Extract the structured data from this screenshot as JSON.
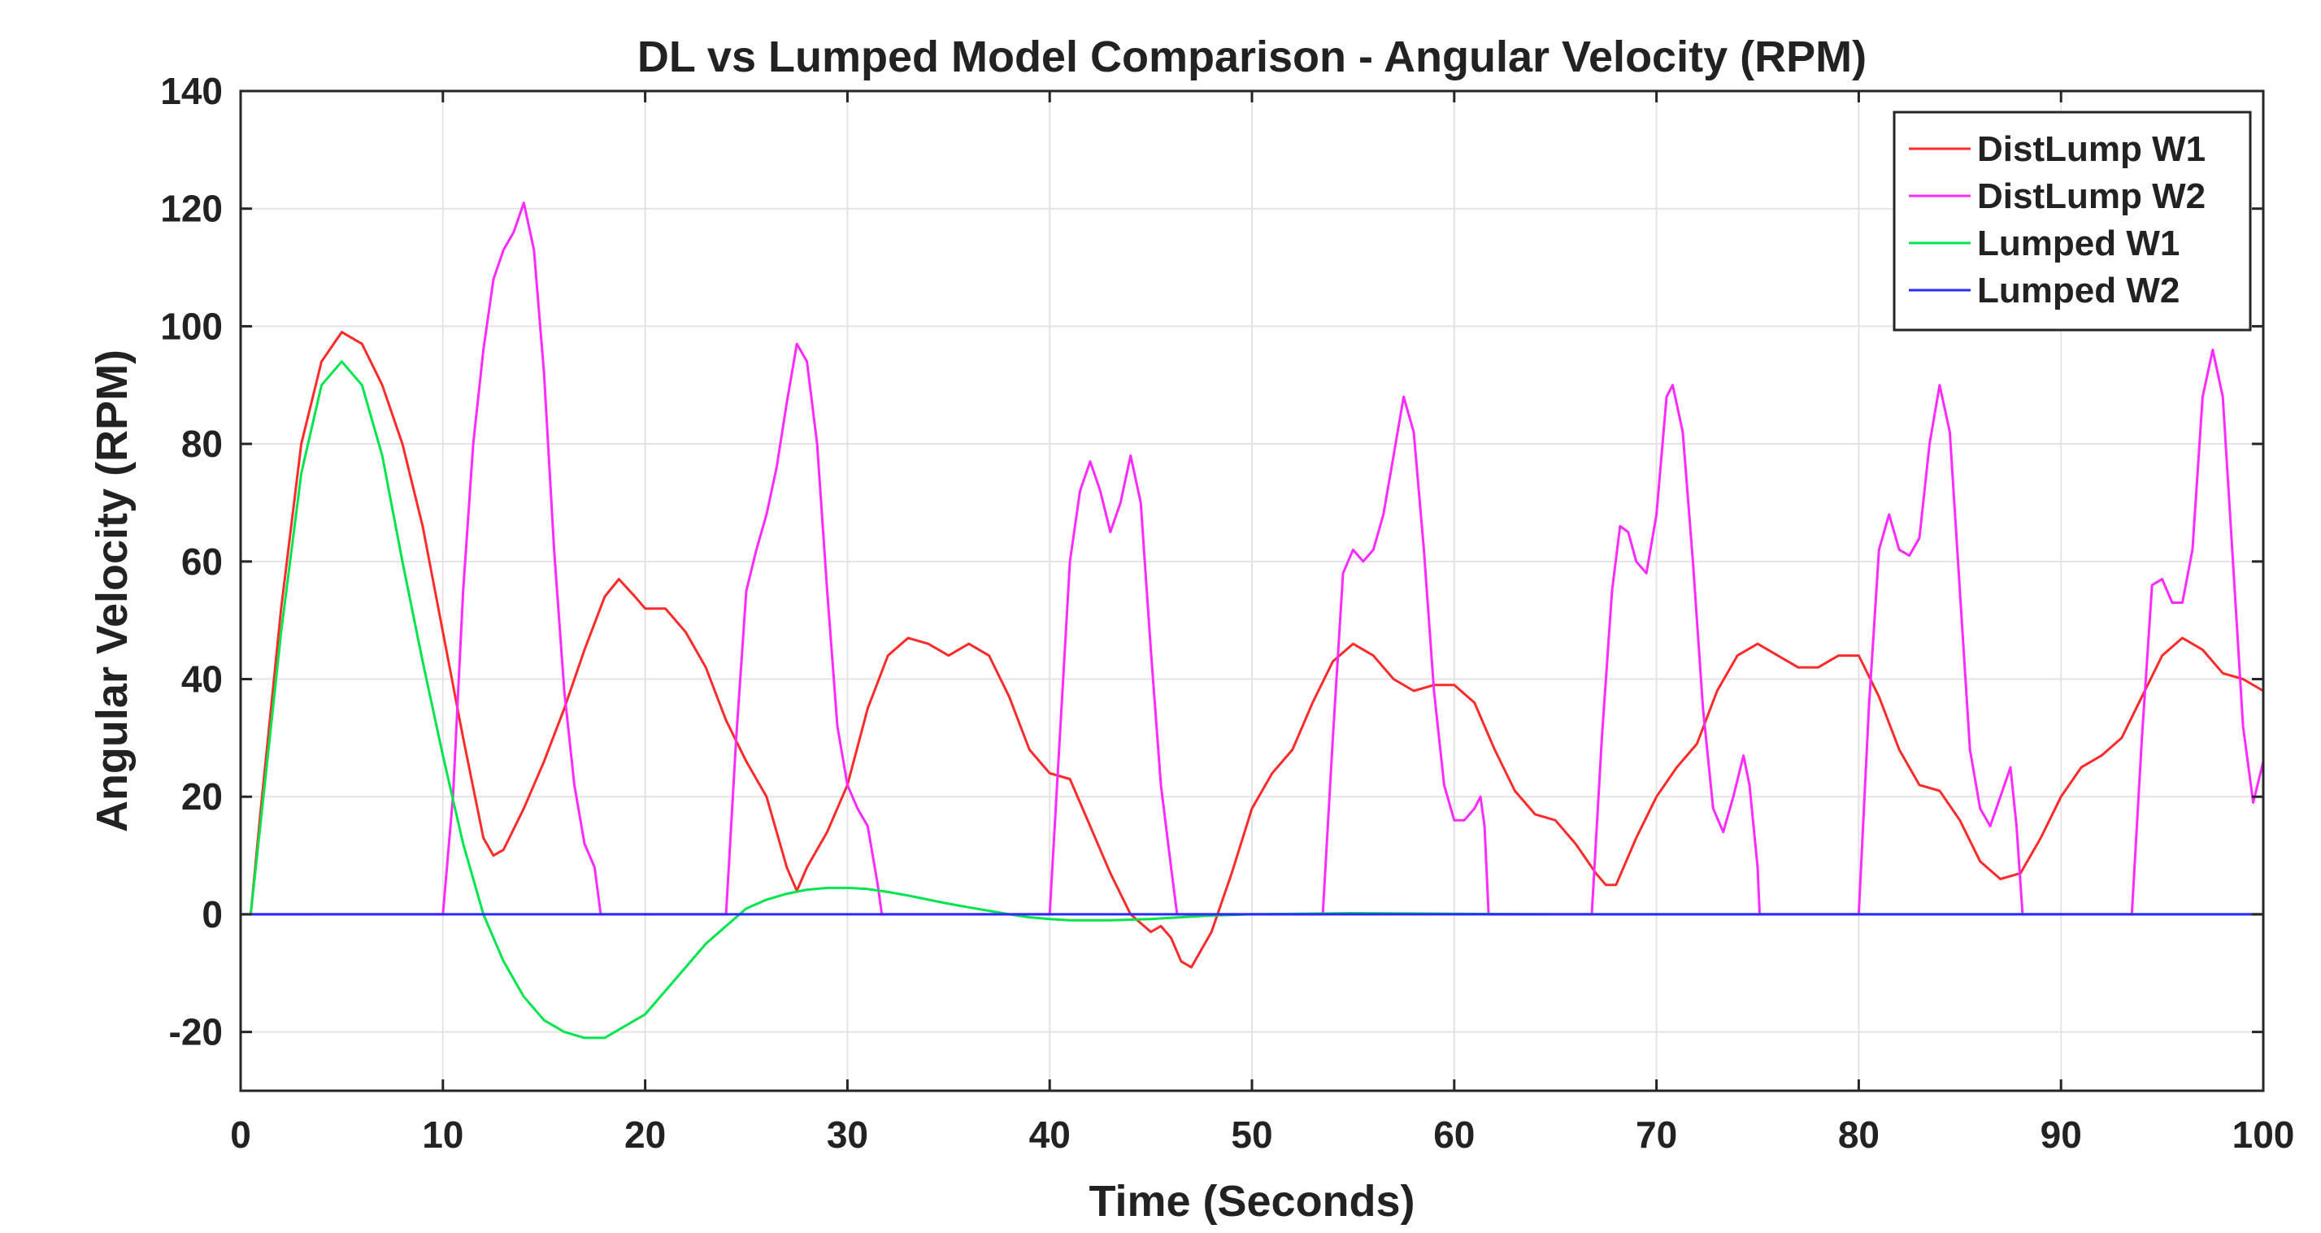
{
  "chart_data": {
    "type": "line",
    "title": "DL vs Lumped Model Comparison - Angular Velocity (RPM)",
    "xlabel": "Time (Seconds)",
    "ylabel": "Angular Velocity (RPM)",
    "xlim": [
      0,
      100
    ],
    "ylim": [
      -30,
      140
    ],
    "xticks": [
      0,
      10,
      20,
      30,
      40,
      50,
      60,
      70,
      80,
      90,
      100
    ],
    "yticks": [
      -20,
      0,
      20,
      40,
      60,
      80,
      100,
      120,
      140
    ],
    "xtick_labels": [
      "0",
      "10",
      "20",
      "30",
      "40",
      "50",
      "60",
      "70",
      "80",
      "90",
      "100"
    ],
    "ytick_labels": [
      "-20",
      "0",
      "20",
      "40",
      "60",
      "80",
      "100",
      "120",
      "140"
    ],
    "grid": true,
    "legend_position": "top-right",
    "series": [
      {
        "name": "DistLump W1",
        "color": "#ff2a2a",
        "points": [
          [
            0.5,
            0
          ],
          [
            1,
            18
          ],
          [
            2,
            52
          ],
          [
            3,
            80
          ],
          [
            4,
            94
          ],
          [
            5,
            99
          ],
          [
            6,
            97
          ],
          [
            7,
            90
          ],
          [
            8,
            80
          ],
          [
            9,
            66
          ],
          [
            10,
            48
          ],
          [
            11,
            30
          ],
          [
            12,
            13
          ],
          [
            12.5,
            10
          ],
          [
            13,
            11
          ],
          [
            14,
            18
          ],
          [
            15,
            26
          ],
          [
            16,
            35
          ],
          [
            17,
            45
          ],
          [
            18,
            54
          ],
          [
            18.7,
            57
          ],
          [
            19.5,
            54
          ],
          [
            20,
            52
          ],
          [
            21,
            52
          ],
          [
            22,
            48
          ],
          [
            23,
            42
          ],
          [
            24,
            33
          ],
          [
            25,
            26
          ],
          [
            26,
            20
          ],
          [
            27,
            8
          ],
          [
            27.5,
            4
          ],
          [
            28,
            8
          ],
          [
            29,
            14
          ],
          [
            30,
            22
          ],
          [
            31,
            35
          ],
          [
            32,
            44
          ],
          [
            33,
            47
          ],
          [
            34,
            46
          ],
          [
            35,
            44
          ],
          [
            36,
            46
          ],
          [
            37,
            44
          ],
          [
            38,
            37
          ],
          [
            39,
            28
          ],
          [
            40,
            24
          ],
          [
            41,
            23
          ],
          [
            42,
            15
          ],
          [
            43,
            7
          ],
          [
            44,
            0
          ],
          [
            45,
            -3
          ],
          [
            45.5,
            -2
          ],
          [
            46,
            -4
          ],
          [
            46.5,
            -8
          ],
          [
            47,
            -9
          ],
          [
            48,
            -3
          ],
          [
            49,
            7
          ],
          [
            50,
            18
          ],
          [
            51,
            24
          ],
          [
            52,
            28
          ],
          [
            53,
            36
          ],
          [
            54,
            43
          ],
          [
            55,
            46
          ],
          [
            56,
            44
          ],
          [
            57,
            40
          ],
          [
            58,
            38
          ],
          [
            59,
            39
          ],
          [
            60,
            39
          ],
          [
            61,
            36
          ],
          [
            62,
            28
          ],
          [
            63,
            21
          ],
          [
            64,
            17
          ],
          [
            65,
            16
          ],
          [
            66,
            12
          ],
          [
            67,
            7
          ],
          [
            67.5,
            5
          ],
          [
            68,
            5
          ],
          [
            69,
            13
          ],
          [
            70,
            20
          ],
          [
            71,
            25
          ],
          [
            72,
            29
          ],
          [
            73,
            38
          ],
          [
            74,
            44
          ],
          [
            75,
            46
          ],
          [
            76,
            44
          ],
          [
            77,
            42
          ],
          [
            78,
            42
          ],
          [
            79,
            44
          ],
          [
            80,
            44
          ],
          [
            81,
            37
          ],
          [
            82,
            28
          ],
          [
            83,
            22
          ],
          [
            84,
            21
          ],
          [
            85,
            16
          ],
          [
            86,
            9
          ],
          [
            87,
            6
          ],
          [
            88,
            7
          ],
          [
            89,
            13
          ],
          [
            90,
            20
          ],
          [
            91,
            25
          ],
          [
            92,
            27
          ],
          [
            93,
            30
          ],
          [
            94,
            37
          ],
          [
            95,
            44
          ],
          [
            96,
            47
          ],
          [
            97,
            45
          ],
          [
            98,
            41
          ],
          [
            99,
            40
          ],
          [
            100,
            38
          ]
        ]
      },
      {
        "name": "DistLump W2",
        "color": "#ff2aff",
        "points": [
          [
            0,
            0
          ],
          [
            10,
            0
          ],
          [
            10.5,
            20
          ],
          [
            11,
            55
          ],
          [
            11.5,
            80
          ],
          [
            12,
            96
          ],
          [
            12.5,
            108
          ],
          [
            13,
            113
          ],
          [
            13.5,
            116
          ],
          [
            14,
            121
          ],
          [
            14.5,
            113
          ],
          [
            15,
            92
          ],
          [
            15.5,
            62
          ],
          [
            16,
            38
          ],
          [
            16.5,
            22
          ],
          [
            17,
            12
          ],
          [
            17.5,
            8
          ],
          [
            17.8,
            0
          ],
          [
            24,
            0
          ],
          [
            24.5,
            30
          ],
          [
            25,
            55
          ],
          [
            25.5,
            62
          ],
          [
            26,
            68
          ],
          [
            26.5,
            76
          ],
          [
            27,
            87
          ],
          [
            27.5,
            97
          ],
          [
            28,
            94
          ],
          [
            28.5,
            80
          ],
          [
            29,
            55
          ],
          [
            29.5,
            32
          ],
          [
            30,
            22
          ],
          [
            30.5,
            18
          ],
          [
            31,
            15
          ],
          [
            31.5,
            5
          ],
          [
            31.7,
            0
          ],
          [
            40,
            0
          ],
          [
            40.5,
            30
          ],
          [
            41,
            60
          ],
          [
            41.5,
            72
          ],
          [
            42,
            77
          ],
          [
            42.5,
            72
          ],
          [
            43,
            65
          ],
          [
            43.5,
            70
          ],
          [
            44,
            78
          ],
          [
            44.5,
            70
          ],
          [
            45,
            45
          ],
          [
            45.5,
            22
          ],
          [
            46,
            8
          ],
          [
            46.3,
            0
          ],
          [
            53.5,
            0
          ],
          [
            54,
            30
          ],
          [
            54.5,
            58
          ],
          [
            55,
            62
          ],
          [
            55.5,
            60
          ],
          [
            56,
            62
          ],
          [
            56.5,
            68
          ],
          [
            57,
            78
          ],
          [
            57.5,
            88
          ],
          [
            58,
            82
          ],
          [
            58.5,
            62
          ],
          [
            59,
            38
          ],
          [
            59.5,
            22
          ],
          [
            60,
            16
          ],
          [
            60.5,
            16
          ],
          [
            61,
            18
          ],
          [
            61.3,
            20
          ],
          [
            61.5,
            15
          ],
          [
            61.7,
            0
          ],
          [
            66.8,
            0
          ],
          [
            67.3,
            30
          ],
          [
            67.8,
            55
          ],
          [
            68.2,
            66
          ],
          [
            68.6,
            65
          ],
          [
            69,
            60
          ],
          [
            69.5,
            58
          ],
          [
            70,
            68
          ],
          [
            70.5,
            88
          ],
          [
            70.8,
            90
          ],
          [
            71.3,
            82
          ],
          [
            71.8,
            60
          ],
          [
            72.3,
            35
          ],
          [
            72.8,
            18
          ],
          [
            73.3,
            14
          ],
          [
            73.8,
            20
          ],
          [
            74.3,
            27
          ],
          [
            74.6,
            22
          ],
          [
            75,
            8
          ],
          [
            75.1,
            0
          ],
          [
            80,
            0
          ],
          [
            80.5,
            35
          ],
          [
            81,
            62
          ],
          [
            81.5,
            68
          ],
          [
            82,
            62
          ],
          [
            82.5,
            61
          ],
          [
            83,
            64
          ],
          [
            83.5,
            80
          ],
          [
            84,
            90
          ],
          [
            84.5,
            82
          ],
          [
            85,
            55
          ],
          [
            85.5,
            28
          ],
          [
            86,
            18
          ],
          [
            86.5,
            15
          ],
          [
            87,
            20
          ],
          [
            87.5,
            25
          ],
          [
            87.8,
            15
          ],
          [
            88.1,
            0
          ],
          [
            93.5,
            0
          ],
          [
            94,
            30
          ],
          [
            94.5,
            56
          ],
          [
            95,
            57
          ],
          [
            95.5,
            53
          ],
          [
            96,
            53
          ],
          [
            96.5,
            62
          ],
          [
            97,
            88
          ],
          [
            97.5,
            96
          ],
          [
            98,
            88
          ],
          [
            98.5,
            60
          ],
          [
            99,
            32
          ],
          [
            99.5,
            19
          ],
          [
            100,
            26
          ]
        ]
      },
      {
        "name": "Lumped W1",
        "color": "#00e54c",
        "points": [
          [
            0.5,
            0
          ],
          [
            1,
            16
          ],
          [
            2,
            48
          ],
          [
            3,
            75
          ],
          [
            4,
            90
          ],
          [
            5,
            94
          ],
          [
            6,
            90
          ],
          [
            7,
            78
          ],
          [
            8,
            60
          ],
          [
            9,
            43
          ],
          [
            10,
            27
          ],
          [
            11,
            12
          ],
          [
            12,
            0
          ],
          [
            13,
            -8
          ],
          [
            14,
            -14
          ],
          [
            15,
            -18
          ],
          [
            16,
            -20
          ],
          [
            17,
            -21
          ],
          [
            18,
            -21
          ],
          [
            19,
            -19
          ],
          [
            20,
            -17
          ],
          [
            21,
            -13
          ],
          [
            22,
            -9
          ],
          [
            23,
            -5
          ],
          [
            24,
            -2
          ],
          [
            25,
            1
          ],
          [
            26,
            2.5
          ],
          [
            27,
            3.5
          ],
          [
            28,
            4.2
          ],
          [
            29,
            4.5
          ],
          [
            30,
            4.5
          ],
          [
            31,
            4.3
          ],
          [
            32,
            3.8
          ],
          [
            33,
            3.2
          ],
          [
            34,
            2.5
          ],
          [
            35,
            1.8
          ],
          [
            36,
            1.2
          ],
          [
            37,
            0.6
          ],
          [
            38,
            0
          ],
          [
            39,
            -0.5
          ],
          [
            40,
            -0.8
          ],
          [
            41,
            -1
          ],
          [
            42,
            -1
          ],
          [
            43,
            -1
          ],
          [
            44,
            -0.9
          ],
          [
            45,
            -0.8
          ],
          [
            46,
            -0.6
          ],
          [
            47,
            -0.4
          ],
          [
            48,
            -0.2
          ],
          [
            50,
            0
          ],
          [
            55,
            0.2
          ],
          [
            60,
            0.1
          ],
          [
            65,
            0
          ],
          [
            70,
            0
          ],
          [
            80,
            0
          ],
          [
            90,
            0
          ],
          [
            100,
            0
          ]
        ]
      },
      {
        "name": "Lumped W2",
        "color": "#2a2aff",
        "points": [
          [
            0,
            0
          ],
          [
            100,
            0
          ]
        ]
      }
    ]
  }
}
